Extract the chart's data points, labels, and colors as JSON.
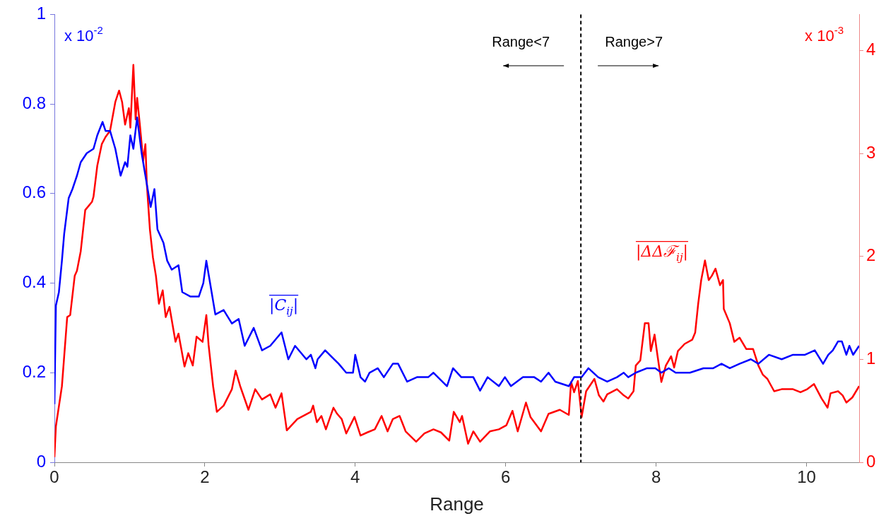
{
  "chart_data": {
    "type": "line",
    "xlabel": "Range",
    "legend": "center",
    "annotations": [
      "Range<7",
      "Range>7",
      "x 10$^{-2}$",
      "x 10$^{-3}$"
    ],
    "xlim": [
      0,
      10.7
    ],
    "xticks": [
      0,
      2,
      4,
      6,
      8,
      10
    ],
    "ylim": [
      0,
      1
    ],
    "yticks": [
      0,
      0.2,
      0.4,
      0.6,
      0.8,
      1
    ],
    "y2lim": [
      0,
      4.35
    ],
    "y2ticks": [
      0,
      1,
      2,
      3,
      4
    ],
    "ref_lines": [
      {
        "axis": "x",
        "value": 7,
        "color": "#000000",
        "line_style": "dashed"
      }
    ],
    "series": [
      {
        "name": "|C$_{ij}$|",
        "color": "#0000ff",
        "axis": "y",
        "x": [
          0,
          0.02,
          0.06,
          0.1,
          0.13,
          0.19,
          0.24,
          0.3,
          0.35,
          0.43,
          0.52,
          0.57,
          0.64,
          0.68,
          0.74,
          0.81,
          0.88,
          0.94,
          0.97,
          1.01,
          1.05,
          1.1,
          1.16,
          1.21,
          1.28,
          1.33,
          1.37,
          1.45,
          1.5,
          1.56,
          1.65,
          1.7,
          1.81,
          1.92,
          1.98,
          2.02,
          2.07,
          2.14,
          2.25,
          2.36,
          2.45,
          2.53,
          2.65,
          2.76,
          2.87,
          3.02,
          3.11,
          3.2,
          3.35,
          3.41,
          3.47,
          3.5,
          3.6,
          3.72,
          3.78,
          3.88,
          3.97,
          4.0,
          4.07,
          4.13,
          4.19,
          4.3,
          4.38,
          4.5,
          4.57,
          4.69,
          4.82,
          4.97,
          5.04,
          5.22,
          5.3,
          5.41,
          5.57,
          5.66,
          5.76,
          5.91,
          5.99,
          6.07,
          6.23,
          6.38,
          6.47,
          6.57,
          6.66,
          6.84,
          6.91,
          7.01,
          7.1,
          7.23,
          7.35,
          7.48,
          7.57,
          7.63,
          7.73,
          7.88,
          7.99,
          8.07,
          8.17,
          8.26,
          8.45,
          8.63,
          8.76,
          8.87,
          8.98,
          9.11,
          9.26,
          9.36,
          9.5,
          9.67,
          9.82,
          9.98,
          10.11,
          10.22,
          10.29,
          10.35,
          10.42,
          10.47,
          10.53,
          10.57,
          10.62,
          10.7
        ],
        "values": [
          0.13,
          0.35,
          0.38,
          0.45,
          0.51,
          0.59,
          0.61,
          0.64,
          0.67,
          0.69,
          0.7,
          0.73,
          0.76,
          0.74,
          0.74,
          0.7,
          0.64,
          0.67,
          0.66,
          0.73,
          0.7,
          0.77,
          0.69,
          0.64,
          0.57,
          0.61,
          0.52,
          0.49,
          0.45,
          0.43,
          0.44,
          0.38,
          0.37,
          0.37,
          0.4,
          0.45,
          0.4,
          0.33,
          0.34,
          0.31,
          0.32,
          0.26,
          0.3,
          0.25,
          0.26,
          0.29,
          0.23,
          0.26,
          0.23,
          0.24,
          0.21,
          0.23,
          0.25,
          0.23,
          0.22,
          0.2,
          0.2,
          0.24,
          0.19,
          0.18,
          0.2,
          0.21,
          0.19,
          0.22,
          0.22,
          0.18,
          0.19,
          0.19,
          0.2,
          0.17,
          0.21,
          0.19,
          0.19,
          0.16,
          0.19,
          0.17,
          0.19,
          0.17,
          0.19,
          0.19,
          0.18,
          0.2,
          0.18,
          0.17,
          0.19,
          0.19,
          0.21,
          0.19,
          0.18,
          0.19,
          0.2,
          0.19,
          0.2,
          0.21,
          0.21,
          0.2,
          0.21,
          0.2,
          0.2,
          0.21,
          0.21,
          0.22,
          0.21,
          0.22,
          0.23,
          0.22,
          0.24,
          0.23,
          0.24,
          0.24,
          0.25,
          0.22,
          0.24,
          0.25,
          0.27,
          0.27,
          0.24,
          0.26,
          0.24,
          0.26
        ]
      },
      {
        "name": "|ΔΔℱ$_{ij}$|",
        "color": "#ff0000",
        "axis": "y2",
        "x": [
          0,
          0.02,
          0.1,
          0.17,
          0.21,
          0.27,
          0.3,
          0.35,
          0.41,
          0.5,
          0.52,
          0.57,
          0.63,
          0.68,
          0.74,
          0.81,
          0.86,
          0.9,
          0.94,
          0.99,
          1.01,
          1.05,
          1.08,
          1.1,
          1.14,
          1.18,
          1.21,
          1.23,
          1.27,
          1.31,
          1.35,
          1.39,
          1.44,
          1.48,
          1.53,
          1.61,
          1.65,
          1.73,
          1.78,
          1.84,
          1.89,
          1.97,
          2.02,
          2.05,
          2.11,
          2.16,
          2.25,
          2.36,
          2.41,
          2.47,
          2.58,
          2.67,
          2.76,
          2.87,
          2.94,
          3.02,
          3.09,
          3.23,
          3.41,
          3.44,
          3.49,
          3.55,
          3.61,
          3.71,
          3.76,
          3.82,
          3.88,
          3.99,
          4.07,
          4.16,
          4.26,
          4.35,
          4.43,
          4.5,
          4.59,
          4.67,
          4.81,
          4.92,
          5.04,
          5.14,
          5.25,
          5.31,
          5.39,
          5.42,
          5.5,
          5.57,
          5.66,
          5.79,
          5.91,
          6.01,
          6.09,
          6.16,
          6.27,
          6.33,
          6.47,
          6.57,
          6.72,
          6.84,
          6.87,
          6.91,
          6.96,
          7.01,
          7.07,
          7.18,
          7.24,
          7.3,
          7.35,
          7.48,
          7.57,
          7.63,
          7.7,
          7.73,
          7.79,
          7.85,
          7.9,
          7.93,
          7.98,
          8.02,
          8.07,
          8.13,
          8.2,
          8.24,
          8.29,
          8.38,
          8.48,
          8.52,
          8.56,
          8.6,
          8.65,
          8.7,
          8.74,
          8.79,
          8.85,
          8.89,
          8.9,
          8.98,
          9.04,
          9.11,
          9.2,
          9.29,
          9.36,
          9.42,
          9.48,
          9.57,
          9.67,
          9.82,
          9.92,
          10.01,
          10.1,
          10.2,
          10.28,
          10.32,
          10.42,
          10.48,
          10.53,
          10.61,
          10.7
        ],
        "values": [
          0.05,
          0.35,
          0.74,
          1.41,
          1.43,
          1.81,
          1.86,
          2.05,
          2.45,
          2.53,
          2.58,
          2.88,
          3.09,
          3.16,
          3.22,
          3.5,
          3.61,
          3.5,
          3.28,
          3.44,
          3.25,
          3.86,
          3.33,
          3.54,
          3.25,
          2.93,
          3.09,
          2.69,
          2.26,
          1.99,
          1.81,
          1.54,
          1.67,
          1.41,
          1.51,
          1.17,
          1.25,
          0.93,
          1.06,
          0.94,
          1.22,
          1.17,
          1.43,
          1.14,
          0.74,
          0.49,
          0.55,
          0.71,
          0.89,
          0.74,
          0.51,
          0.71,
          0.61,
          0.66,
          0.53,
          0.67,
          0.31,
          0.42,
          0.49,
          0.55,
          0.39,
          0.45,
          0.32,
          0.53,
          0.47,
          0.42,
          0.28,
          0.44,
          0.26,
          0.29,
          0.32,
          0.45,
          0.3,
          0.42,
          0.45,
          0.3,
          0.2,
          0.28,
          0.32,
          0.29,
          0.21,
          0.49,
          0.39,
          0.45,
          0.18,
          0.3,
          0.2,
          0.3,
          0.32,
          0.36,
          0.5,
          0.3,
          0.58,
          0.44,
          0.3,
          0.47,
          0.51,
          0.46,
          0.78,
          0.68,
          0.79,
          0.44,
          0.69,
          0.81,
          0.65,
          0.59,
          0.66,
          0.71,
          0.65,
          0.62,
          0.69,
          0.94,
          0.99,
          1.35,
          1.35,
          1.08,
          1.24,
          1.03,
          0.78,
          0.94,
          1.03,
          0.92,
          1.08,
          1.15,
          1.19,
          1.26,
          1.54,
          1.77,
          1.96,
          1.77,
          1.81,
          1.88,
          1.72,
          1.77,
          1.49,
          1.35,
          1.17,
          1.21,
          1.1,
          1.1,
          0.94,
          0.85,
          0.81,
          0.69,
          0.71,
          0.71,
          0.68,
          0.71,
          0.76,
          0.62,
          0.53,
          0.67,
          0.69,
          0.65,
          0.58,
          0.63,
          0.74
        ]
      }
    ]
  }
}
